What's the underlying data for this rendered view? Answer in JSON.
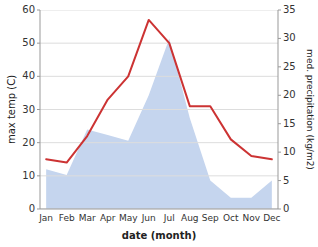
{
  "chart_data": {
    "type": "line",
    "x_label": "date (month)",
    "y_label": "max temp (C)",
    "y2_label": "med. precipitation (kg/m2)",
    "categories": [
      "Jan",
      "Feb",
      "Mar",
      "Apr",
      "May",
      "Jun",
      "Jul",
      "Aug",
      "Sep",
      "Oct",
      "Nov",
      "Dec"
    ],
    "series": [
      {
        "type": "line",
        "color": "#cc3333",
        "values": [
          15,
          14,
          22,
          33,
          40,
          57,
          50,
          31,
          31,
          21,
          16,
          15
        ]
      },
      {
        "type": "area",
        "color": "#c5d5ee",
        "axis": "y2",
        "values": [
          7,
          6,
          14,
          13,
          12,
          20,
          30,
          16,
          5,
          2,
          2,
          5
        ]
      }
    ],
    "ylim": [
      0,
      60
    ],
    "yticks": [
      0,
      10,
      20,
      30,
      40,
      50,
      60
    ],
    "y2lim": [
      0,
      35
    ],
    "y2ticks": [
      0,
      5,
      10,
      15,
      20,
      25,
      30,
      35
    ],
    "grid": true
  }
}
